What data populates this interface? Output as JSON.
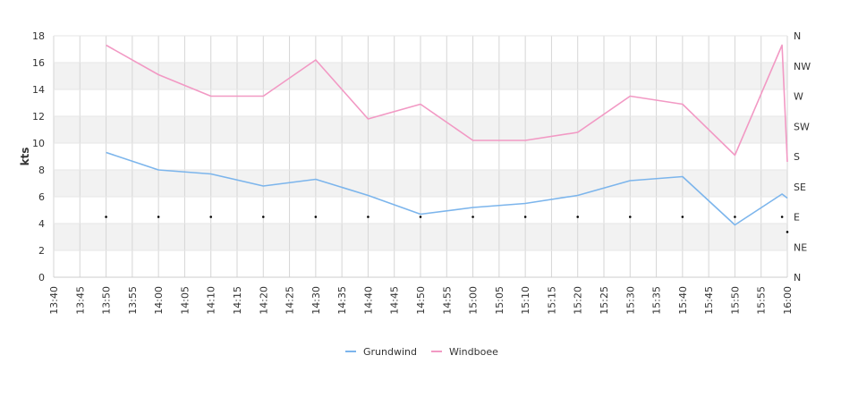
{
  "chart_data": {
    "type": "line",
    "title": "",
    "xlabel": "",
    "ylabel": "kts",
    "ylim": [
      0,
      18
    ],
    "y_ticks": [
      "0",
      "2",
      "4",
      "6",
      "8",
      "10",
      "12",
      "14",
      "16",
      "18"
    ],
    "y2_ticks": [
      "N",
      "NE",
      "E",
      "SE",
      "S",
      "SW",
      "W",
      "NW",
      "N"
    ],
    "x_range": [
      "13:40",
      "16:00"
    ],
    "x_ticks": [
      "13:40",
      "13:45",
      "13:50",
      "13:55",
      "14:00",
      "14:05",
      "14:10",
      "14:15",
      "14:20",
      "14:25",
      "14:30",
      "14:35",
      "14:40",
      "14:45",
      "14:50",
      "14:55",
      "15:00",
      "15:05",
      "15:10",
      "15:15",
      "15:20",
      "15:25",
      "15:30",
      "15:35",
      "15:40",
      "15:45",
      "15:50",
      "15:55",
      "16:00"
    ],
    "grid": true,
    "legend_position": "bottom-center",
    "series": [
      {
        "name": "Grundwind",
        "color": "#7cb5ec",
        "x": [
          "13:50",
          "14:00",
          "14:10",
          "14:20",
          "14:30",
          "14:40",
          "14:50",
          "15:00",
          "15:10",
          "15:20",
          "15:30",
          "15:40",
          "15:50",
          "15:59",
          "16:00"
        ],
        "values": [
          9.3,
          8.0,
          7.7,
          6.8,
          7.3,
          6.1,
          4.7,
          5.2,
          5.5,
          6.1,
          7.2,
          7.5,
          3.9,
          6.2,
          5.9
        ]
      },
      {
        "name": "Windboee",
        "color": "#f299c4",
        "x": [
          "13:50",
          "14:00",
          "14:10",
          "14:20",
          "14:30",
          "14:40",
          "14:50",
          "15:00",
          "15:10",
          "15:20",
          "15:30",
          "15:40",
          "15:50",
          "15:59",
          "16:00"
        ],
        "values": [
          17.3,
          15.1,
          13.5,
          13.5,
          16.2,
          11.8,
          12.9,
          10.2,
          10.2,
          10.8,
          13.5,
          12.9,
          9.1,
          17.3,
          8.6
        ]
      }
    ],
    "direction_markers": {
      "x": [
        "13:50",
        "14:00",
        "14:10",
        "14:20",
        "14:30",
        "14:40",
        "14:50",
        "15:00",
        "15:10",
        "15:20",
        "15:30",
        "15:40",
        "15:50",
        "15:59",
        "16:00"
      ],
      "values": [
        "E",
        "E",
        "E",
        "E",
        "E",
        "E",
        "E",
        "E",
        "E",
        "E",
        "E",
        "E",
        "E",
        "E",
        "ENE"
      ]
    }
  }
}
